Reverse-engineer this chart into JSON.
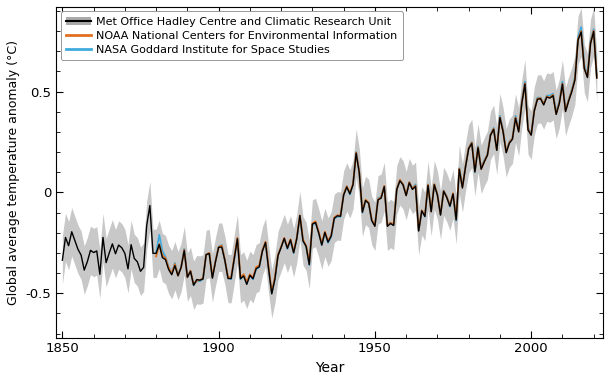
{
  "xlabel": "Year",
  "ylabel": "Global average temperature anomaly (°C)",
  "xlim": [
    1848,
    2023
  ],
  "ylim": [
    -0.72,
    0.92
  ],
  "yticks": [
    -0.5,
    0.0,
    0.5
  ],
  "xticks": [
    1850,
    1900,
    1950,
    2000
  ],
  "legend_labels": [
    "Met Office Hadley Centre and Climatic Research Unit",
    "NOAA National Centers for Environmental Information",
    "NASA Goddard Institute for Space Studies"
  ],
  "hadcrut_color": "#000000",
  "noaa_color": "#E07020",
  "nasa_color": "#40AADD",
  "shade_color": "#C8C8C8",
  "legend_shade_color": "#AAAAAA",
  "background_color": "#ffffff",
  "years_hadcrut": [
    1850,
    1851,
    1852,
    1853,
    1854,
    1855,
    1856,
    1857,
    1858,
    1859,
    1860,
    1861,
    1862,
    1863,
    1864,
    1865,
    1866,
    1867,
    1868,
    1869,
    1870,
    1871,
    1872,
    1873,
    1874,
    1875,
    1876,
    1877,
    1878,
    1879,
    1880,
    1881,
    1882,
    1883,
    1884,
    1885,
    1886,
    1887,
    1888,
    1889,
    1890,
    1891,
    1892,
    1893,
    1894,
    1895,
    1896,
    1897,
    1898,
    1899,
    1900,
    1901,
    1902,
    1903,
    1904,
    1905,
    1906,
    1907,
    1908,
    1909,
    1910,
    1911,
    1912,
    1913,
    1914,
    1915,
    1916,
    1917,
    1918,
    1919,
    1920,
    1921,
    1922,
    1923,
    1924,
    1925,
    1926,
    1927,
    1928,
    1929,
    1930,
    1931,
    1932,
    1933,
    1934,
    1935,
    1936,
    1937,
    1938,
    1939,
    1940,
    1941,
    1942,
    1943,
    1944,
    1945,
    1946,
    1947,
    1948,
    1949,
    1950,
    1951,
    1952,
    1953,
    1954,
    1955,
    1956,
    1957,
    1958,
    1959,
    1960,
    1961,
    1962,
    1963,
    1964,
    1965,
    1966,
    1967,
    1968,
    1969,
    1970,
    1971,
    1972,
    1973,
    1974,
    1975,
    1976,
    1977,
    1978,
    1979,
    1980,
    1981,
    1982,
    1983,
    1984,
    1985,
    1986,
    1987,
    1988,
    1989,
    1990,
    1991,
    1992,
    1993,
    1994,
    1995,
    1996,
    1997,
    1998,
    1999,
    2000,
    2001,
    2002,
    2003,
    2004,
    2005,
    2006,
    2007,
    2008,
    2009,
    2010,
    2011,
    2012,
    2013,
    2014,
    2015,
    2016,
    2017,
    2018,
    2019,
    2020,
    2021
  ],
  "hadcrut": [
    -0.336,
    -0.223,
    -0.264,
    -0.195,
    -0.239,
    -0.282,
    -0.311,
    -0.385,
    -0.343,
    -0.287,
    -0.298,
    -0.29,
    -0.406,
    -0.223,
    -0.348,
    -0.3,
    -0.255,
    -0.304,
    -0.261,
    -0.274,
    -0.302,
    -0.379,
    -0.259,
    -0.327,
    -0.344,
    -0.391,
    -0.371,
    -0.162,
    -0.065,
    -0.302,
    -0.302,
    -0.258,
    -0.323,
    -0.333,
    -0.382,
    -0.408,
    -0.363,
    -0.413,
    -0.371,
    -0.288,
    -0.42,
    -0.391,
    -0.46,
    -0.432,
    -0.435,
    -0.429,
    -0.308,
    -0.303,
    -0.425,
    -0.343,
    -0.272,
    -0.271,
    -0.337,
    -0.427,
    -0.427,
    -0.33,
    -0.23,
    -0.428,
    -0.414,
    -0.456,
    -0.411,
    -0.428,
    -0.378,
    -0.369,
    -0.291,
    -0.248,
    -0.38,
    -0.503,
    -0.43,
    -0.313,
    -0.272,
    -0.228,
    -0.277,
    -0.235,
    -0.299,
    -0.229,
    -0.114,
    -0.24,
    -0.267,
    -0.358,
    -0.157,
    -0.149,
    -0.2,
    -0.261,
    -0.198,
    -0.246,
    -0.217,
    -0.128,
    -0.116,
    -0.118,
    -0.013,
    0.027,
    -0.007,
    0.039,
    0.195,
    0.098,
    -0.098,
    -0.04,
    -0.054,
    -0.14,
    -0.168,
    -0.037,
    -0.028,
    0.029,
    -0.168,
    -0.154,
    -0.164,
    0.014,
    0.058,
    0.038,
    -0.016,
    0.048,
    0.015,
    0.03,
    -0.191,
    -0.091,
    -0.119,
    0.035,
    -0.096,
    0.038,
    -0.013,
    -0.112,
    0.006,
    -0.025,
    -0.068,
    -0.007,
    -0.136,
    0.115,
    0.022,
    0.127,
    0.217,
    0.243,
    0.102,
    0.222,
    0.115,
    0.152,
    0.184,
    0.284,
    0.313,
    0.209,
    0.371,
    0.302,
    0.197,
    0.244,
    0.264,
    0.368,
    0.3,
    0.441,
    0.538,
    0.31,
    0.284,
    0.404,
    0.462,
    0.465,
    0.434,
    0.473,
    0.468,
    0.48,
    0.387,
    0.441,
    0.537,
    0.401,
    0.454,
    0.5,
    0.558,
    0.756,
    0.796,
    0.614,
    0.57,
    0.739,
    0.798,
    0.567
  ],
  "hadcrut_upper": [
    -0.216,
    -0.103,
    -0.144,
    -0.075,
    -0.119,
    -0.162,
    -0.191,
    -0.265,
    -0.223,
    -0.167,
    -0.178,
    -0.17,
    -0.286,
    -0.103,
    -0.228,
    -0.18,
    -0.135,
    -0.184,
    -0.141,
    -0.154,
    -0.182,
    -0.259,
    -0.139,
    -0.207,
    -0.224,
    -0.271,
    -0.251,
    -0.042,
    0.055,
    -0.182,
    -0.182,
    -0.138,
    -0.203,
    -0.213,
    -0.262,
    -0.288,
    -0.243,
    -0.293,
    -0.251,
    -0.168,
    -0.3,
    -0.271,
    -0.34,
    -0.312,
    -0.315,
    -0.309,
    -0.188,
    -0.183,
    -0.305,
    -0.223,
    -0.152,
    -0.151,
    -0.217,
    -0.307,
    -0.307,
    -0.21,
    -0.11,
    -0.308,
    -0.294,
    -0.336,
    -0.291,
    -0.308,
    -0.258,
    -0.249,
    -0.171,
    -0.128,
    -0.26,
    -0.383,
    -0.31,
    -0.193,
    -0.152,
    -0.108,
    -0.157,
    -0.115,
    -0.179,
    -0.109,
    0.006,
    -0.12,
    -0.147,
    -0.238,
    -0.037,
    -0.029,
    -0.08,
    -0.141,
    -0.078,
    -0.126,
    -0.097,
    -0.008,
    0.004,
    0.002,
    0.107,
    0.147,
    0.113,
    0.159,
    0.315,
    0.218,
    0.022,
    0.08,
    0.066,
    -0.02,
    -0.048,
    0.083,
    0.092,
    0.149,
    -0.048,
    -0.034,
    -0.044,
    0.134,
    0.178,
    0.158,
    0.104,
    0.168,
    0.135,
    0.15,
    -0.071,
    0.029,
    0.001,
    0.155,
    0.024,
    0.158,
    0.107,
    0.008,
    0.126,
    0.095,
    0.052,
    0.113,
    -0.016,
    0.235,
    0.142,
    0.247,
    0.337,
    0.363,
    0.222,
    0.342,
    0.235,
    0.272,
    0.304,
    0.404,
    0.433,
    0.329,
    0.491,
    0.422,
    0.317,
    0.364,
    0.384,
    0.488,
    0.42,
    0.561,
    0.658,
    0.43,
    0.404,
    0.524,
    0.582,
    0.585,
    0.554,
    0.593,
    0.588,
    0.6,
    0.507,
    0.561,
    0.657,
    0.521,
    0.574,
    0.62,
    0.678,
    0.876,
    0.916,
    0.734,
    0.69,
    0.859,
    0.918,
    0.687
  ],
  "hadcrut_lower": [
    -0.456,
    -0.343,
    -0.384,
    -0.315,
    -0.359,
    -0.402,
    -0.431,
    -0.505,
    -0.463,
    -0.407,
    -0.418,
    -0.41,
    -0.526,
    -0.343,
    -0.468,
    -0.42,
    -0.375,
    -0.424,
    -0.381,
    -0.394,
    -0.422,
    -0.499,
    -0.379,
    -0.447,
    -0.464,
    -0.511,
    -0.491,
    -0.282,
    -0.185,
    -0.422,
    -0.422,
    -0.378,
    -0.443,
    -0.453,
    -0.502,
    -0.528,
    -0.483,
    -0.533,
    -0.491,
    -0.408,
    -0.54,
    -0.511,
    -0.58,
    -0.552,
    -0.555,
    -0.549,
    -0.428,
    -0.423,
    -0.545,
    -0.463,
    -0.392,
    -0.391,
    -0.457,
    -0.547,
    -0.547,
    -0.45,
    -0.35,
    -0.548,
    -0.534,
    -0.576,
    -0.531,
    -0.548,
    -0.498,
    -0.489,
    -0.411,
    -0.368,
    -0.5,
    -0.623,
    -0.55,
    -0.433,
    -0.392,
    -0.348,
    -0.397,
    -0.355,
    -0.419,
    -0.349,
    -0.234,
    -0.36,
    -0.387,
    -0.478,
    -0.277,
    -0.269,
    -0.32,
    -0.381,
    -0.318,
    -0.366,
    -0.337,
    -0.248,
    -0.236,
    -0.238,
    -0.133,
    -0.093,
    -0.127,
    -0.081,
    0.075,
    -0.022,
    -0.218,
    -0.16,
    -0.174,
    -0.26,
    -0.288,
    -0.157,
    -0.148,
    -0.091,
    -0.288,
    -0.274,
    -0.284,
    -0.106,
    -0.062,
    -0.082,
    -0.136,
    -0.072,
    -0.105,
    -0.09,
    -0.311,
    -0.211,
    -0.239,
    -0.085,
    -0.216,
    -0.082,
    -0.133,
    -0.232,
    -0.114,
    -0.145,
    -0.188,
    -0.127,
    -0.256,
    -0.005,
    -0.098,
    0.007,
    0.097,
    0.123,
    -0.018,
    0.102,
    -0.005,
    0.032,
    0.064,
    0.164,
    0.193,
    0.089,
    0.251,
    0.182,
    0.077,
    0.124,
    0.144,
    0.248,
    0.18,
    0.321,
    0.418,
    0.19,
    0.164,
    0.284,
    0.342,
    0.345,
    0.314,
    0.353,
    0.348,
    0.36,
    0.267,
    0.321,
    0.417,
    0.281,
    0.334,
    0.38,
    0.438,
    0.636,
    0.676,
    0.494,
    0.45,
    0.619,
    0.678,
    0.447
  ],
  "years_noaa": [
    1880,
    1881,
    1882,
    1883,
    1884,
    1885,
    1886,
    1887,
    1888,
    1889,
    1890,
    1891,
    1892,
    1893,
    1894,
    1895,
    1896,
    1897,
    1898,
    1899,
    1900,
    1901,
    1902,
    1903,
    1904,
    1905,
    1906,
    1907,
    1908,
    1909,
    1910,
    1911,
    1912,
    1913,
    1914,
    1915,
    1916,
    1917,
    1918,
    1919,
    1920,
    1921,
    1922,
    1923,
    1924,
    1925,
    1926,
    1927,
    1928,
    1929,
    1930,
    1931,
    1932,
    1933,
    1934,
    1935,
    1936,
    1937,
    1938,
    1939,
    1940,
    1941,
    1942,
    1943,
    1944,
    1945,
    1946,
    1947,
    1948,
    1949,
    1950,
    1951,
    1952,
    1953,
    1954,
    1955,
    1956,
    1957,
    1958,
    1959,
    1960,
    1961,
    1962,
    1963,
    1964,
    1965,
    1966,
    1967,
    1968,
    1969,
    1970,
    1971,
    1972,
    1973,
    1974,
    1975,
    1976,
    1977,
    1978,
    1979,
    1980,
    1981,
    1982,
    1983,
    1984,
    1985,
    1986,
    1987,
    1988,
    1989,
    1990,
    1991,
    1992,
    1993,
    1994,
    1995,
    1996,
    1997,
    1998,
    1999,
    2000,
    2001,
    2002,
    2003,
    2004,
    2005,
    2006,
    2007,
    2008,
    2009,
    2010,
    2011,
    2012,
    2013,
    2014,
    2015,
    2016,
    2017,
    2018,
    2019,
    2020,
    2021
  ],
  "noaa": [
    -0.317,
    -0.256,
    -0.313,
    -0.325,
    -0.373,
    -0.403,
    -0.355,
    -0.413,
    -0.372,
    -0.284,
    -0.421,
    -0.388,
    -0.456,
    -0.438,
    -0.434,
    -0.425,
    -0.309,
    -0.299,
    -0.42,
    -0.34,
    -0.271,
    -0.263,
    -0.335,
    -0.419,
    -0.421,
    -0.322,
    -0.225,
    -0.422,
    -0.406,
    -0.445,
    -0.406,
    -0.422,
    -0.37,
    -0.362,
    -0.287,
    -0.244,
    -0.373,
    -0.494,
    -0.421,
    -0.308,
    -0.27,
    -0.225,
    -0.274,
    -0.232,
    -0.295,
    -0.225,
    -0.114,
    -0.234,
    -0.265,
    -0.35,
    -0.153,
    -0.144,
    -0.194,
    -0.254,
    -0.195,
    -0.24,
    -0.213,
    -0.124,
    -0.113,
    -0.114,
    -0.009,
    0.031,
    -0.003,
    0.042,
    0.198,
    0.1,
    -0.094,
    -0.036,
    -0.05,
    -0.136,
    -0.162,
    -0.034,
    -0.024,
    0.033,
    -0.163,
    -0.15,
    -0.159,
    0.017,
    0.063,
    0.04,
    -0.013,
    0.051,
    0.019,
    0.034,
    -0.188,
    -0.088,
    -0.115,
    0.038,
    -0.093,
    0.041,
    -0.011,
    -0.109,
    0.008,
    -0.022,
    -0.065,
    -0.004,
    -0.133,
    0.118,
    0.025,
    0.13,
    0.22,
    0.247,
    0.105,
    0.225,
    0.118,
    0.155,
    0.187,
    0.286,
    0.316,
    0.211,
    0.373,
    0.305,
    0.2,
    0.248,
    0.268,
    0.372,
    0.303,
    0.445,
    0.541,
    0.313,
    0.287,
    0.408,
    0.465,
    0.468,
    0.438,
    0.476,
    0.471,
    0.484,
    0.39,
    0.444,
    0.54,
    0.405,
    0.458,
    0.504,
    0.562,
    0.76,
    0.8,
    0.618,
    0.574,
    0.743,
    0.802,
    0.571
  ],
  "years_nasa": [
    1880,
    1881,
    1882,
    1883,
    1884,
    1885,
    1886,
    1887,
    1888,
    1889,
    1890,
    1891,
    1892,
    1893,
    1894,
    1895,
    1896,
    1897,
    1898,
    1899,
    1900,
    1901,
    1902,
    1903,
    1904,
    1905,
    1906,
    1907,
    1908,
    1909,
    1910,
    1911,
    1912,
    1913,
    1914,
    1915,
    1916,
    1917,
    1918,
    1919,
    1920,
    1921,
    1922,
    1923,
    1924,
    1925,
    1926,
    1927,
    1928,
    1929,
    1930,
    1931,
    1932,
    1933,
    1934,
    1935,
    1936,
    1937,
    1938,
    1939,
    1940,
    1941,
    1942,
    1943,
    1944,
    1945,
    1946,
    1947,
    1948,
    1949,
    1950,
    1951,
    1952,
    1953,
    1954,
    1955,
    1956,
    1957,
    1958,
    1959,
    1960,
    1961,
    1962,
    1963,
    1964,
    1965,
    1966,
    1967,
    1968,
    1969,
    1970,
    1971,
    1972,
    1973,
    1974,
    1975,
    1976,
    1977,
    1978,
    1979,
    1980,
    1981,
    1982,
    1983,
    1984,
    1985,
    1986,
    1987,
    1988,
    1989,
    1990,
    1991,
    1992,
    1993,
    1994,
    1995,
    1996,
    1997,
    1998,
    1999,
    2000,
    2001,
    2002,
    2003,
    2004,
    2005,
    2006,
    2007,
    2008,
    2009,
    2010,
    2011,
    2012,
    2013,
    2014,
    2015,
    2016,
    2017,
    2018,
    2019,
    2020,
    2021
  ],
  "nasa": [
    -0.3,
    -0.21,
    -0.29,
    -0.32,
    -0.37,
    -0.4,
    -0.35,
    -0.41,
    -0.37,
    -0.28,
    -0.42,
    -0.39,
    -0.46,
    -0.44,
    -0.44,
    -0.43,
    -0.31,
    -0.3,
    -0.42,
    -0.34,
    -0.27,
    -0.26,
    -0.34,
    -0.42,
    -0.43,
    -0.33,
    -0.23,
    -0.43,
    -0.41,
    -0.45,
    -0.41,
    -0.43,
    -0.38,
    -0.37,
    -0.29,
    -0.25,
    -0.38,
    -0.5,
    -0.43,
    -0.31,
    -0.27,
    -0.23,
    -0.28,
    -0.24,
    -0.3,
    -0.23,
    -0.12,
    -0.24,
    -0.27,
    -0.36,
    -0.16,
    -0.15,
    -0.2,
    -0.26,
    -0.2,
    -0.25,
    -0.22,
    -0.13,
    -0.12,
    -0.12,
    -0.01,
    0.03,
    -0.01,
    0.04,
    0.2,
    0.1,
    -0.1,
    -0.04,
    -0.05,
    -0.14,
    -0.16,
    -0.03,
    -0.02,
    0.03,
    -0.16,
    -0.15,
    -0.16,
    0.02,
    0.06,
    0.04,
    -0.01,
    0.05,
    0.02,
    0.04,
    -0.19,
    -0.09,
    -0.12,
    0.04,
    -0.09,
    0.04,
    -0.01,
    -0.11,
    0.01,
    -0.02,
    -0.07,
    -0.01,
    -0.14,
    0.12,
    0.03,
    0.13,
    0.22,
    0.25,
    0.1,
    0.23,
    0.12,
    0.16,
    0.19,
    0.29,
    0.32,
    0.21,
    0.38,
    0.31,
    0.2,
    0.25,
    0.27,
    0.38,
    0.31,
    0.45,
    0.55,
    0.32,
    0.29,
    0.41,
    0.47,
    0.47,
    0.44,
    0.48,
    0.48,
    0.49,
    0.4,
    0.45,
    0.55,
    0.41,
    0.46,
    0.51,
    0.57,
    0.77,
    0.82,
    0.63,
    0.58,
    0.75,
    0.81,
    0.58
  ]
}
